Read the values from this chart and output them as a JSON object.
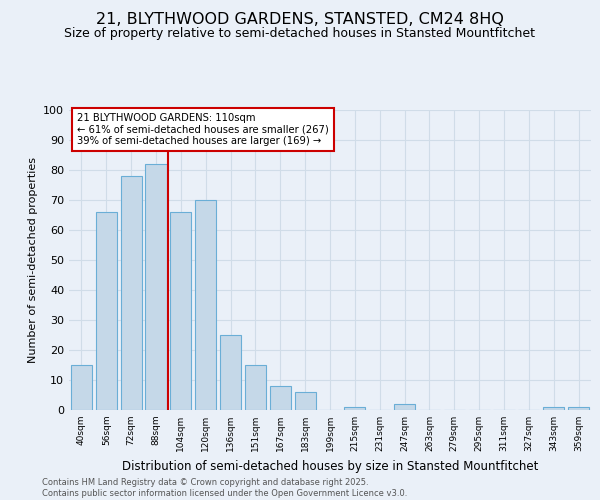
{
  "title": "21, BLYTHWOOD GARDENS, STANSTED, CM24 8HQ",
  "subtitle": "Size of property relative to semi-detached houses in Stansted Mountfitchet",
  "xlabel": "Distribution of semi-detached houses by size in Stansted Mountfitchet",
  "ylabel": "Number of semi-detached properties",
  "categories": [
    "40sqm",
    "56sqm",
    "72sqm",
    "88sqm",
    "104sqm",
    "120sqm",
    "136sqm",
    "151sqm",
    "167sqm",
    "183sqm",
    "199sqm",
    "215sqm",
    "231sqm",
    "247sqm",
    "263sqm",
    "279sqm",
    "295sqm",
    "311sqm",
    "327sqm",
    "343sqm",
    "359sqm"
  ],
  "values": [
    15,
    66,
    78,
    82,
    66,
    70,
    25,
    15,
    8,
    6,
    0,
    1,
    0,
    2,
    0,
    0,
    0,
    0,
    0,
    1,
    1
  ],
  "bar_color": "#c5d8e8",
  "bar_edge_color": "#6aaed6",
  "vline_color": "#cc0000",
  "vline_x": 3.5,
  "annotation_title": "21 BLYTHWOOD GARDENS: 110sqm",
  "annotation_line2": "← 61% of semi-detached houses are smaller (267)",
  "annotation_line3": "39% of semi-detached houses are larger (169) →",
  "annotation_box_edgecolor": "#cc0000",
  "ylim": [
    0,
    100
  ],
  "yticks": [
    0,
    10,
    20,
    30,
    40,
    50,
    60,
    70,
    80,
    90,
    100
  ],
  "footer": "Contains HM Land Registry data © Crown copyright and database right 2025.\nContains public sector information licensed under the Open Government Licence v3.0.",
  "bg_color": "#eaf0f8",
  "grid_color": "#d0dce8",
  "title_fontsize": 11.5,
  "subtitle_fontsize": 9
}
